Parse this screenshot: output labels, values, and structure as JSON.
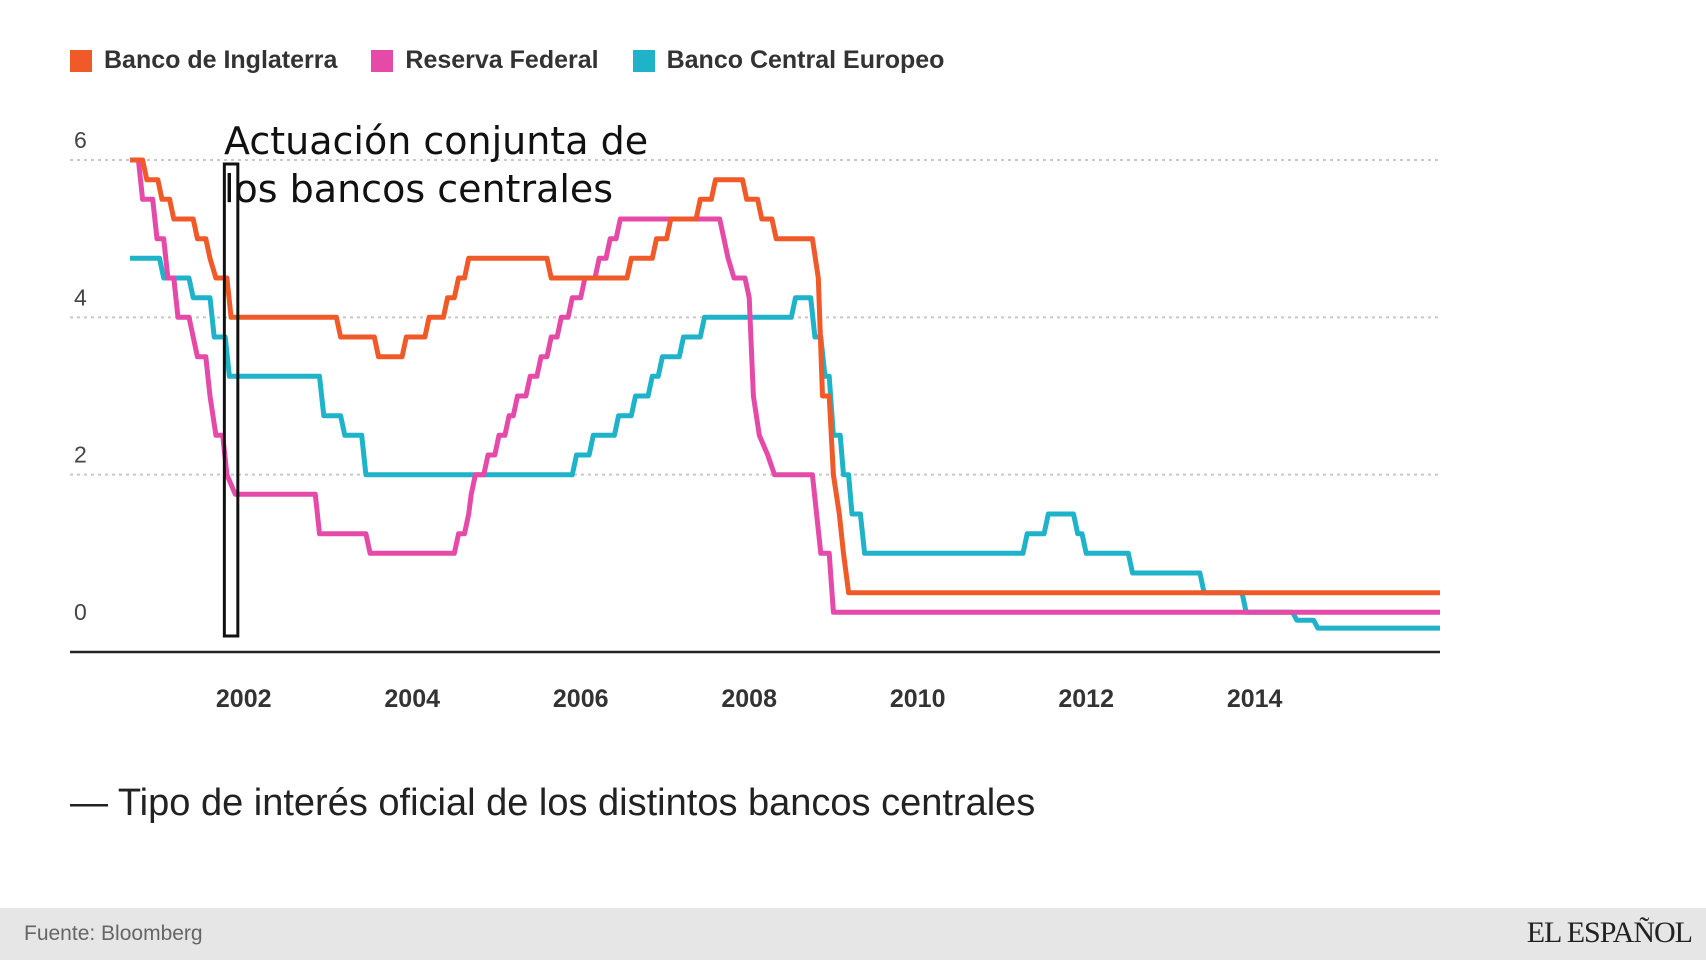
{
  "chart_data": {
    "type": "line",
    "title": "Tipo de interés oficial de los distintos bancos centrales",
    "title_prefix": "—",
    "xlabel": "",
    "ylabel": "",
    "xlim": [
      2000.65,
      2016.2
    ],
    "ylim": [
      0,
      6
    ],
    "yticks": [
      "0",
      "2",
      "4",
      "6"
    ],
    "xticks": [
      "2002",
      "2004",
      "2006",
      "2008",
      "2010",
      "2012",
      "2014"
    ],
    "grid": true,
    "legend_position": "top-left",
    "annotation": {
      "lines": [
        "Actuación conjunta de",
        "los bancos centrales"
      ],
      "x_start": 2001.77,
      "x_end": 2001.93
    },
    "series": [
      {
        "name": "Banco de Inglaterra",
        "color": "#f05a28",
        "points": [
          [
            2000.65,
            6.0
          ],
          [
            2000.8,
            6.0
          ],
          [
            2000.85,
            5.75
          ],
          [
            2000.98,
            5.75
          ],
          [
            2001.03,
            5.5
          ],
          [
            2001.12,
            5.5
          ],
          [
            2001.17,
            5.25
          ],
          [
            2001.4,
            5.25
          ],
          [
            2001.45,
            5.0
          ],
          [
            2001.55,
            5.0
          ],
          [
            2001.6,
            4.75
          ],
          [
            2001.67,
            4.5
          ],
          [
            2001.8,
            4.5
          ],
          [
            2001.85,
            4.0
          ],
          [
            2003.1,
            4.0
          ],
          [
            2003.15,
            3.75
          ],
          [
            2003.55,
            3.75
          ],
          [
            2003.6,
            3.5
          ],
          [
            2003.88,
            3.5
          ],
          [
            2003.93,
            3.75
          ],
          [
            2004.15,
            3.75
          ],
          [
            2004.2,
            4.0
          ],
          [
            2004.37,
            4.0
          ],
          [
            2004.42,
            4.25
          ],
          [
            2004.5,
            4.25
          ],
          [
            2004.55,
            4.5
          ],
          [
            2004.62,
            4.5
          ],
          [
            2004.67,
            4.75
          ],
          [
            2005.6,
            4.75
          ],
          [
            2005.65,
            4.5
          ],
          [
            2006.55,
            4.5
          ],
          [
            2006.6,
            4.75
          ],
          [
            2006.85,
            4.75
          ],
          [
            2006.9,
            5.0
          ],
          [
            2007.02,
            5.0
          ],
          [
            2007.07,
            5.25
          ],
          [
            2007.37,
            5.25
          ],
          [
            2007.42,
            5.5
          ],
          [
            2007.55,
            5.5
          ],
          [
            2007.6,
            5.75
          ],
          [
            2007.92,
            5.75
          ],
          [
            2007.97,
            5.5
          ],
          [
            2008.1,
            5.5
          ],
          [
            2008.15,
            5.25
          ],
          [
            2008.27,
            5.25
          ],
          [
            2008.32,
            5.0
          ],
          [
            2008.75,
            5.0
          ],
          [
            2008.82,
            4.5
          ],
          [
            2008.87,
            3.0
          ],
          [
            2008.95,
            3.0
          ],
          [
            2009.0,
            2.0
          ],
          [
            2009.07,
            1.5
          ],
          [
            2009.12,
            1.0
          ],
          [
            2009.18,
            0.5
          ],
          [
            2016.2,
            0.5
          ]
        ]
      },
      {
        "name": "Reserva Federal",
        "color": "#e54aa8",
        "points": [
          [
            2000.65,
            6.0
          ],
          [
            2000.75,
            6.0
          ],
          [
            2000.8,
            5.5
          ],
          [
            2000.92,
            5.5
          ],
          [
            2000.97,
            5.0
          ],
          [
            2001.05,
            5.0
          ],
          [
            2001.1,
            4.5
          ],
          [
            2001.17,
            4.5
          ],
          [
            2001.22,
            4.0
          ],
          [
            2001.35,
            4.0
          ],
          [
            2001.4,
            3.75
          ],
          [
            2001.45,
            3.5
          ],
          [
            2001.55,
            3.5
          ],
          [
            2001.6,
            3.0
          ],
          [
            2001.67,
            2.5
          ],
          [
            2001.75,
            2.5
          ],
          [
            2001.8,
            2.0
          ],
          [
            2001.9,
            1.75
          ],
          [
            2002.85,
            1.75
          ],
          [
            2002.9,
            1.25
          ],
          [
            2003.45,
            1.25
          ],
          [
            2003.5,
            1.0
          ],
          [
            2004.5,
            1.0
          ],
          [
            2004.55,
            1.25
          ],
          [
            2004.62,
            1.25
          ],
          [
            2004.67,
            1.5
          ],
          [
            2004.7,
            1.75
          ],
          [
            2004.75,
            2.0
          ],
          [
            2004.85,
            2.0
          ],
          [
            2004.9,
            2.25
          ],
          [
            2004.98,
            2.25
          ],
          [
            2005.03,
            2.5
          ],
          [
            2005.1,
            2.5
          ],
          [
            2005.15,
            2.75
          ],
          [
            2005.2,
            2.75
          ],
          [
            2005.25,
            3.0
          ],
          [
            2005.35,
            3.0
          ],
          [
            2005.4,
            3.25
          ],
          [
            2005.48,
            3.25
          ],
          [
            2005.53,
            3.5
          ],
          [
            2005.6,
            3.5
          ],
          [
            2005.65,
            3.75
          ],
          [
            2005.72,
            3.75
          ],
          [
            2005.77,
            4.0
          ],
          [
            2005.85,
            4.0
          ],
          [
            2005.9,
            4.25
          ],
          [
            2006.0,
            4.25
          ],
          [
            2006.05,
            4.5
          ],
          [
            2006.17,
            4.5
          ],
          [
            2006.22,
            4.75
          ],
          [
            2006.3,
            4.75
          ],
          [
            2006.35,
            5.0
          ],
          [
            2006.42,
            5.0
          ],
          [
            2006.47,
            5.25
          ],
          [
            2007.65,
            5.25
          ],
          [
            2007.7,
            5.0
          ],
          [
            2007.75,
            4.75
          ],
          [
            2007.82,
            4.5
          ],
          [
            2007.95,
            4.5
          ],
          [
            2008.0,
            4.25
          ],
          [
            2008.05,
            3.0
          ],
          [
            2008.12,
            2.5
          ],
          [
            2008.22,
            2.25
          ],
          [
            2008.3,
            2.0
          ],
          [
            2008.75,
            2.0
          ],
          [
            2008.8,
            1.5
          ],
          [
            2008.85,
            1.0
          ],
          [
            2008.95,
            1.0
          ],
          [
            2009.0,
            0.25
          ],
          [
            2016.2,
            0.25
          ]
        ]
      },
      {
        "name": "Banco Central Europeo",
        "color": "#1fb3c9",
        "points": [
          [
            2000.65,
            4.75
          ],
          [
            2001.0,
            4.75
          ],
          [
            2001.05,
            4.5
          ],
          [
            2001.35,
            4.5
          ],
          [
            2001.4,
            4.25
          ],
          [
            2001.6,
            4.25
          ],
          [
            2001.65,
            3.75
          ],
          [
            2001.78,
            3.75
          ],
          [
            2001.83,
            3.25
          ],
          [
            2002.9,
            3.25
          ],
          [
            2002.95,
            2.75
          ],
          [
            2003.15,
            2.75
          ],
          [
            2003.2,
            2.5
          ],
          [
            2003.4,
            2.5
          ],
          [
            2003.45,
            2.0
          ],
          [
            2005.9,
            2.0
          ],
          [
            2005.95,
            2.25
          ],
          [
            2006.1,
            2.25
          ],
          [
            2006.15,
            2.5
          ],
          [
            2006.4,
            2.5
          ],
          [
            2006.45,
            2.75
          ],
          [
            2006.6,
            2.75
          ],
          [
            2006.65,
            3.0
          ],
          [
            2006.8,
            3.0
          ],
          [
            2006.85,
            3.25
          ],
          [
            2006.92,
            3.25
          ],
          [
            2006.97,
            3.5
          ],
          [
            2007.17,
            3.5
          ],
          [
            2007.22,
            3.75
          ],
          [
            2007.42,
            3.75
          ],
          [
            2007.47,
            4.0
          ],
          [
            2008.5,
            4.0
          ],
          [
            2008.55,
            4.25
          ],
          [
            2008.73,
            4.25
          ],
          [
            2008.78,
            3.75
          ],
          [
            2008.85,
            3.75
          ],
          [
            2008.9,
            3.25
          ],
          [
            2008.95,
            3.25
          ],
          [
            2009.0,
            2.5
          ],
          [
            2009.08,
            2.5
          ],
          [
            2009.12,
            2.0
          ],
          [
            2009.18,
            2.0
          ],
          [
            2009.22,
            1.5
          ],
          [
            2009.32,
            1.5
          ],
          [
            2009.37,
            1.0
          ],
          [
            2011.25,
            1.0
          ],
          [
            2011.3,
            1.25
          ],
          [
            2011.5,
            1.25
          ],
          [
            2011.55,
            1.5
          ],
          [
            2011.85,
            1.5
          ],
          [
            2011.9,
            1.25
          ],
          [
            2011.95,
            1.25
          ],
          [
            2012.0,
            1.0
          ],
          [
            2012.5,
            1.0
          ],
          [
            2012.55,
            0.75
          ],
          [
            2013.35,
            0.75
          ],
          [
            2013.4,
            0.5
          ],
          [
            2013.85,
            0.5
          ],
          [
            2013.9,
            0.25
          ],
          [
            2014.45,
            0.25
          ],
          [
            2014.5,
            0.15
          ],
          [
            2014.7,
            0.15
          ],
          [
            2014.75,
            0.05
          ],
          [
            2016.2,
            0.05
          ]
        ]
      }
    ]
  },
  "legend": [
    {
      "label": "Banco de Inglaterra",
      "color": "#f05a28"
    },
    {
      "label": "Reserva Federal",
      "color": "#e54aa8"
    },
    {
      "label": "Banco Central Europeo",
      "color": "#1fb3c9"
    }
  ],
  "footer": {
    "source": "Fuente: Bloomberg",
    "brand": "EL ESPAÑOL"
  }
}
